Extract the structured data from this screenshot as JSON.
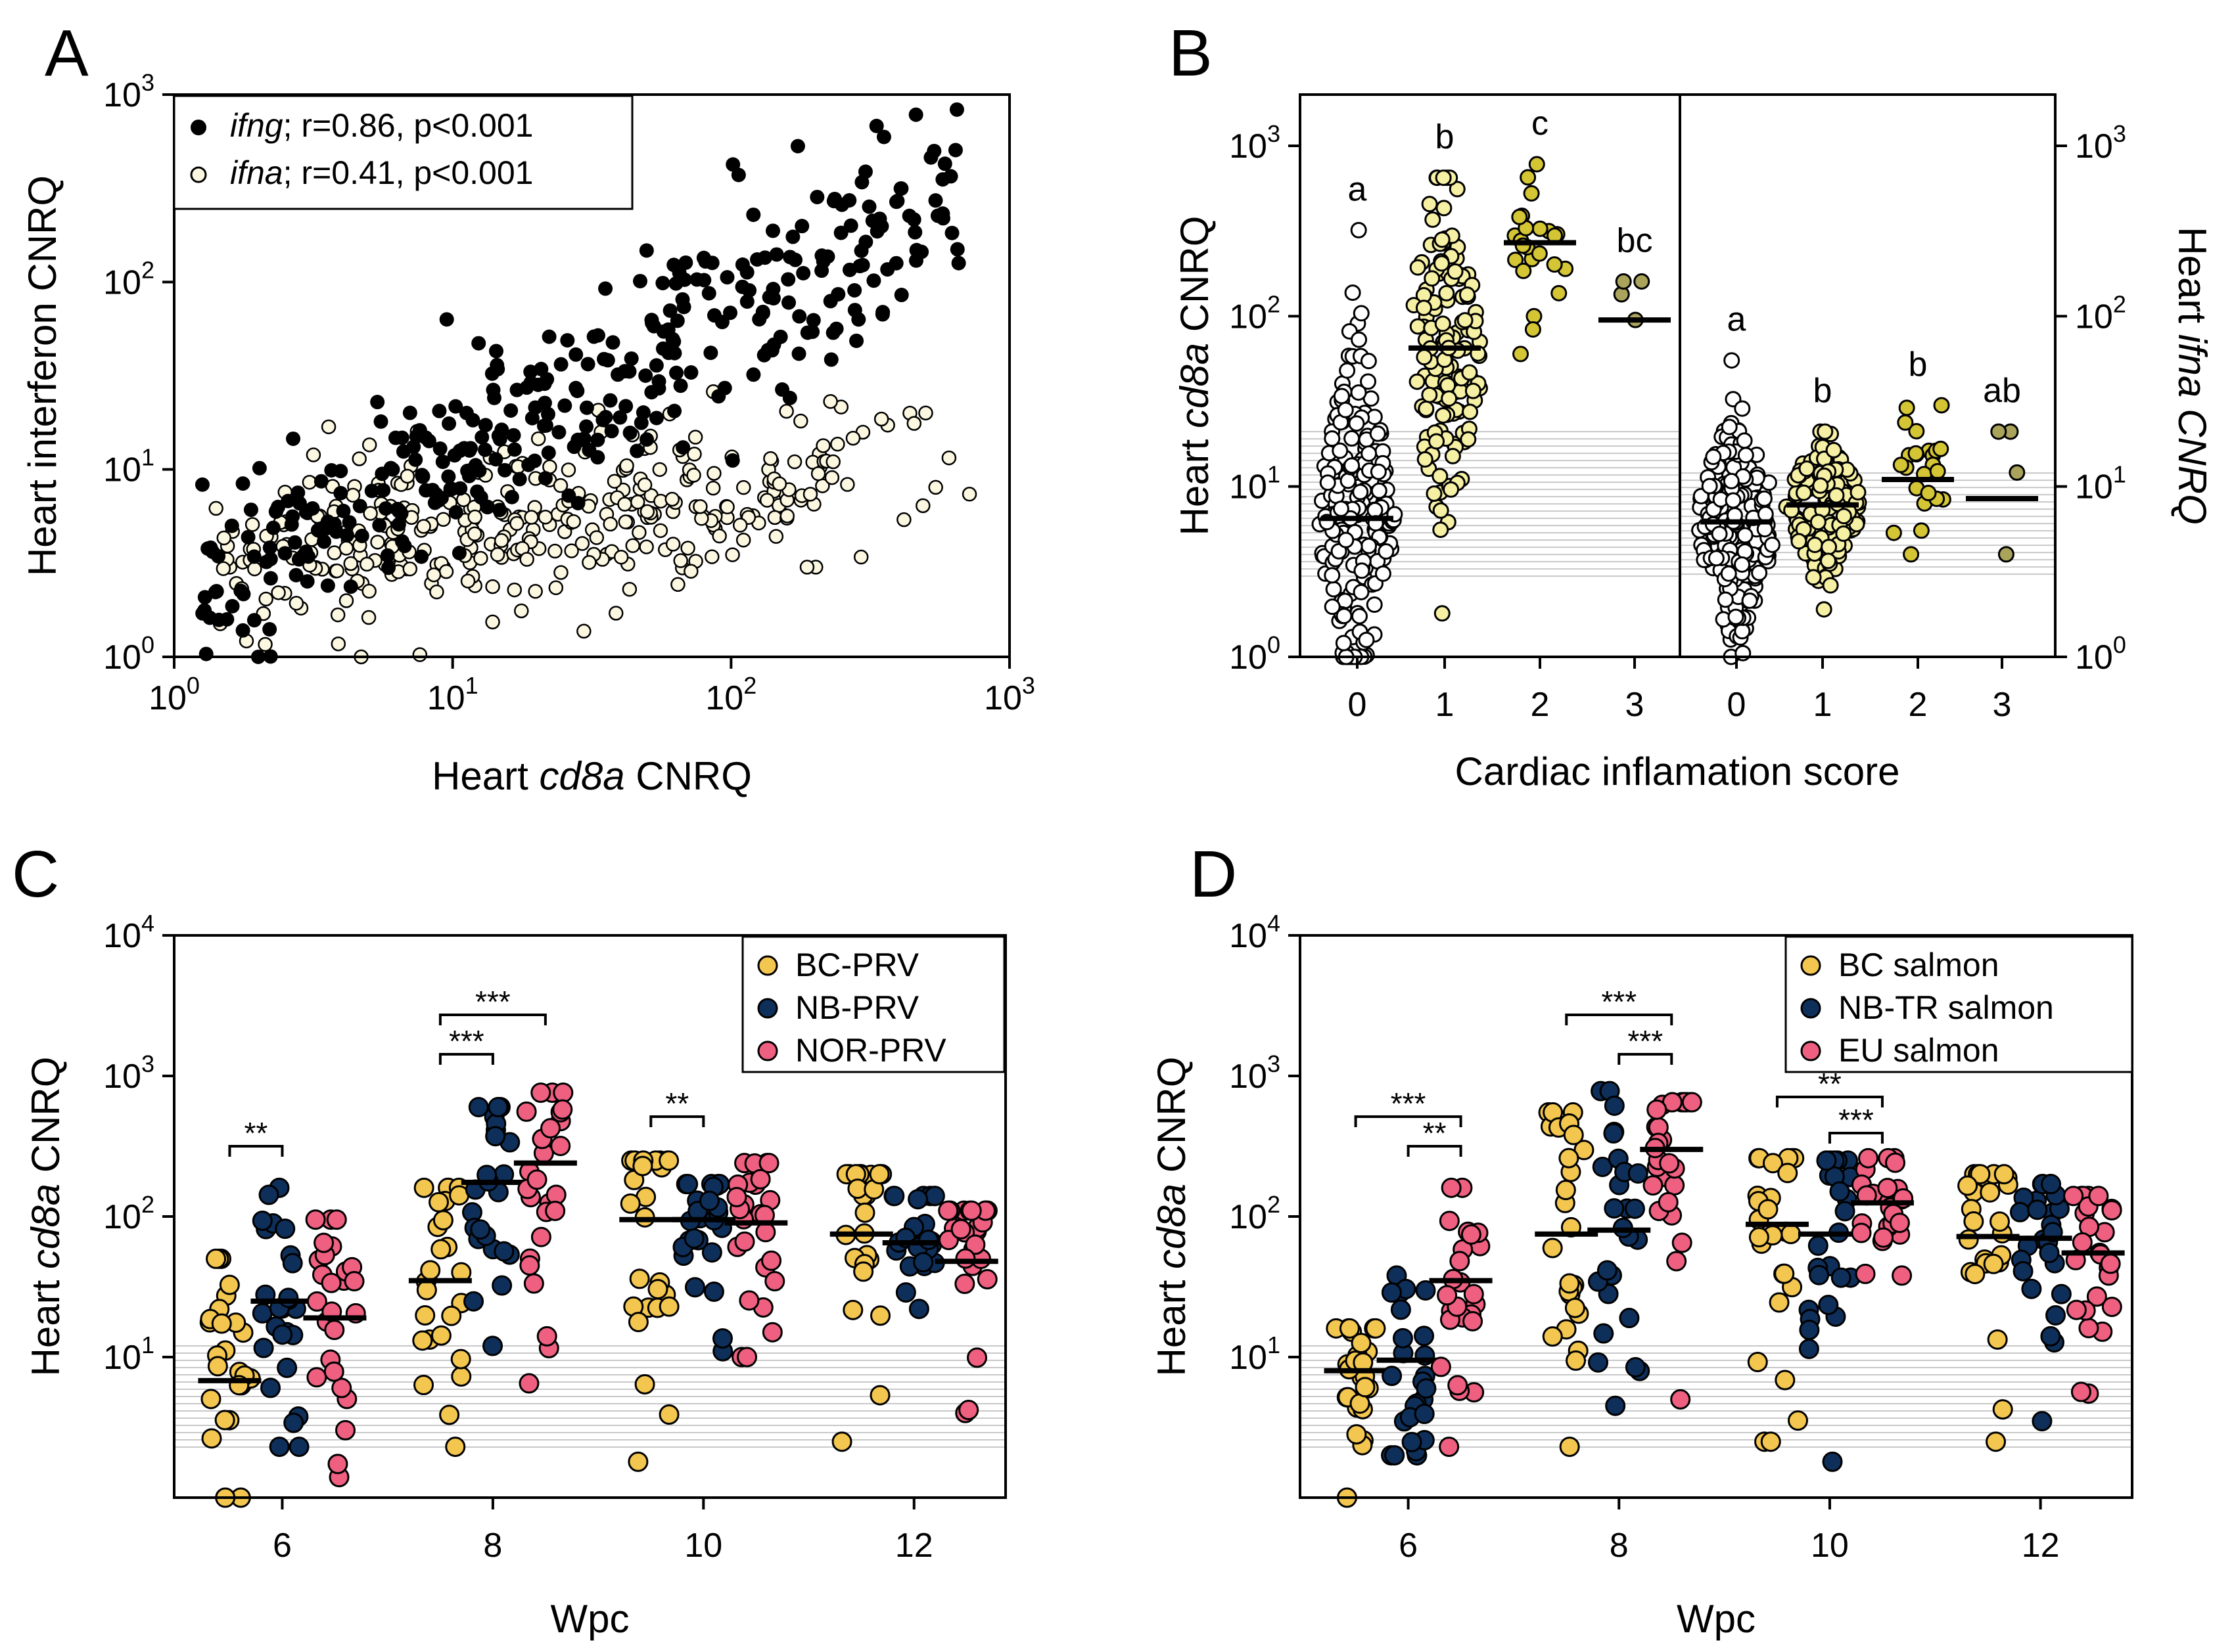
{
  "colors": {
    "bc": "#f3c64f",
    "nb": "#0e2f5a",
    "nor": "#ee5f80",
    "ifng": "#000000",
    "ifna": "#fbf7e0",
    "s0": "#ffffff",
    "s1": "#f6f0a4",
    "s2": "#d4c534",
    "s3": "#a9a35b",
    "band": "#c8c8c8"
  },
  "chart_data": [
    {
      "panel": "A",
      "type": "scatter",
      "xlabel_pre": "Heart ",
      "xlabel_ital": "cd8a",
      "xlabel_post": " CNRQ",
      "ylabel": "Heart interferon CNRQ",
      "xscale": "log",
      "yscale": "log",
      "xlim": [
        1,
        1000
      ],
      "ylim": [
        1,
        1000
      ],
      "xticks": [
        {
          "b": "10",
          "e": "0"
        },
        {
          "b": "10",
          "e": "1"
        },
        {
          "b": "10",
          "e": "2"
        },
        {
          "b": "10",
          "e": "3"
        }
      ],
      "yticks": [
        {
          "b": "10",
          "e": "0"
        },
        {
          "b": "10",
          "e": "1"
        },
        {
          "b": "10",
          "e": "2"
        },
        {
          "b": "10",
          "e": "3"
        }
      ],
      "legend": [
        {
          "gene": "ifng",
          "stat": "; r=0.86, p<0.001",
          "style": "filled"
        },
        {
          "gene": "ifna",
          "stat": "; r=0.41, p<0.001",
          "style": "open"
        }
      ],
      "series": [
        {
          "name": "ifng",
          "n": 360,
          "corr": 0.86
        },
        {
          "name": "ifna",
          "n": 360,
          "corr": 0.41
        }
      ]
    },
    {
      "panel": "B",
      "type": "scatter",
      "xlabel": "Cardiac inflamation score",
      "ylabel_left_pre": "Heart ",
      "ylabel_left_ital": "cd8a",
      "ylabel_left_post": " CNRQ",
      "ylabel_right_pre": "Heart ",
      "ylabel_right_ital": "ifna CNRQ",
      "yscale": "log",
      "ylim": [
        1,
        2000
      ],
      "yticks": [
        {
          "b": "10",
          "e": "0"
        },
        {
          "b": "10",
          "e": "1"
        },
        {
          "b": "10",
          "e": "2"
        },
        {
          "b": "10",
          "e": "3"
        }
      ],
      "groups": [
        {
          "side": "cd8a",
          "score": "0",
          "median": 6.5,
          "letter": "a",
          "n": 200,
          "min": 1,
          "max": 320
        },
        {
          "side": "cd8a",
          "score": "1",
          "median": 65,
          "letter": "b",
          "n": 140,
          "min": 1.8,
          "max": 650
        },
        {
          "side": "cd8a",
          "score": "2",
          "median": 270,
          "letter": "c",
          "n": 24,
          "min": 60,
          "max": 780
        },
        {
          "side": "cd8a",
          "score": "3",
          "median": 95,
          "letter": "bc",
          "n": 4,
          "min": 95,
          "max": 160
        },
        {
          "side": "ifna",
          "score": "0",
          "median": 6.2,
          "letter": "a",
          "n": 200,
          "min": 1,
          "max": 55
        },
        {
          "side": "ifna",
          "score": "1",
          "median": 7.8,
          "letter": "b",
          "n": 140,
          "min": 1.9,
          "max": 21
        },
        {
          "side": "ifna",
          "score": "2",
          "median": 11,
          "letter": "b",
          "n": 24,
          "min": 4,
          "max": 30
        },
        {
          "side": "ifna",
          "score": "3",
          "median": 8.5,
          "letter": "ab",
          "n": 4,
          "min": 4,
          "max": 21
        }
      ],
      "xticks": [
        "0",
        "1",
        "2",
        "3",
        "0",
        "1",
        "2",
        "3"
      ]
    },
    {
      "panel": "C",
      "type": "scatter",
      "xlabel": "Wpc",
      "ylabel_pre": "Heart ",
      "ylabel_ital": "cd8a",
      "ylabel_post": " CNRQ",
      "yscale": "log",
      "ylim": [
        1,
        10000
      ],
      "yticks": [
        {
          "b": "10",
          "e": "1"
        },
        {
          "b": "10",
          "e": "2"
        },
        {
          "b": "10",
          "e": "3"
        },
        {
          "b": "10",
          "e": "4"
        }
      ],
      "categories": [
        "6",
        "8",
        "10",
        "12"
      ],
      "legend": [
        "BC-PRV",
        "NB-PRV",
        "NOR-PRV"
      ],
      "series": [
        {
          "name": "BC-PRV",
          "medians": [
            6.8,
            35,
            95,
            75
          ],
          "min": [
            1,
            2.3,
            1.8,
            2.5
          ],
          "max": [
            50,
            160,
            250,
            200
          ]
        },
        {
          "name": "NB-PRV",
          "medians": [
            25,
            175,
            95,
            65
          ],
          "min": [
            2.3,
            12,
            11,
            22
          ],
          "max": [
            160,
            600,
            170,
            140
          ]
        },
        {
          "name": "NOR-PRV",
          "medians": [
            19,
            240,
            90,
            48
          ],
          "min": [
            1.4,
            6.5,
            10,
            4
          ],
          "max": [
            95,
            760,
            240,
            110
          ]
        }
      ],
      "significance": [
        {
          "week": "6",
          "pair": "BC-NB",
          "label": "**"
        },
        {
          "week": "8",
          "pair": "BC-NB",
          "label": "***"
        },
        {
          "week": "8",
          "pair": "BC-NOR",
          "label": "***"
        },
        {
          "week": "10",
          "pair": "BC-NB",
          "label": "**"
        }
      ]
    },
    {
      "panel": "D",
      "type": "scatter",
      "xlabel": "Wpc",
      "ylabel_pre": "Heart ",
      "ylabel_ital": "cd8a",
      "ylabel_post": " CNRQ",
      "yscale": "log",
      "ylim": [
        1,
        10000
      ],
      "yticks": [
        {
          "b": "10",
          "e": "1"
        },
        {
          "b": "10",
          "e": "2"
        },
        {
          "b": "10",
          "e": "3"
        },
        {
          "b": "10",
          "e": "4"
        }
      ],
      "categories": [
        "6",
        "8",
        "10",
        "12"
      ],
      "legend": [
        "BC salmon",
        "NB-TR salmon",
        "EU salmon"
      ],
      "series": [
        {
          "name": "BC salmon",
          "medians": [
            8,
            75,
            88,
            72
          ],
          "min": [
            1,
            2.3,
            2.5,
            2.5
          ],
          "max": [
            16,
            550,
            260,
            200
          ]
        },
        {
          "name": "NB-TR salmon",
          "medians": [
            9.5,
            80,
            75,
            70
          ],
          "min": [
            2,
            4.5,
            1.8,
            3.5
          ],
          "max": [
            38,
            780,
            250,
            170
          ]
        },
        {
          "name": "EU salmon",
          "medians": [
            35,
            300,
            125,
            55
          ],
          "min": [
            2.3,
            5,
            38,
            5.5
          ],
          "max": [
            160,
            650,
            260,
            140
          ]
        }
      ],
      "significance": [
        {
          "week": "6",
          "pair": "BC-EU",
          "label": "***"
        },
        {
          "week": "6",
          "pair": "NB-EU",
          "label": "**"
        },
        {
          "week": "8",
          "pair": "BC-EU",
          "label": "***"
        },
        {
          "week": "8",
          "pair": "NB-EU",
          "label": "***"
        },
        {
          "week": "10",
          "pair": "BC-EU",
          "label": "**"
        },
        {
          "week": "10",
          "pair": "NB-EU",
          "label": "***"
        }
      ]
    }
  ]
}
